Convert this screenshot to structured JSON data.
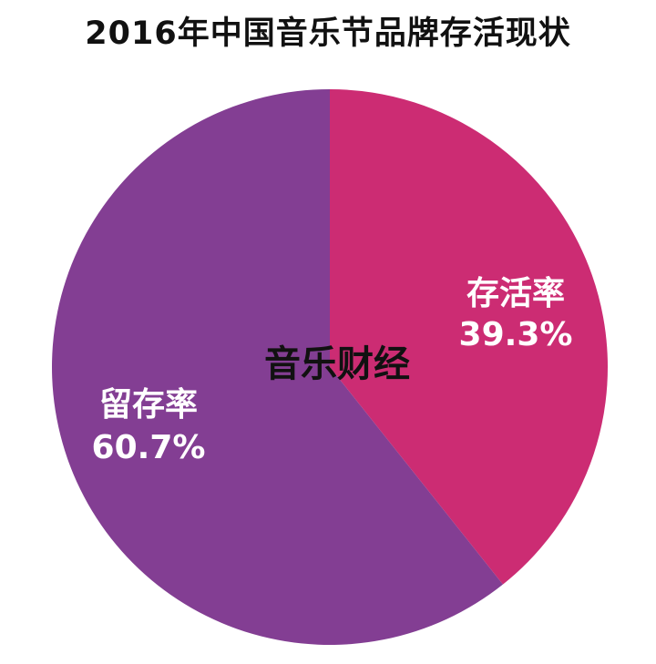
{
  "chart_data": {
    "type": "pie",
    "title": "2016年中国音乐节品牌存活现状",
    "slices": [
      {
        "label": "存活率",
        "value": 39.3,
        "value_label": "39.3%",
        "color": "#cc2c73"
      },
      {
        "label": "留存率",
        "value": 60.7,
        "value_label": "60.7%",
        "color": "#833e93"
      }
    ],
    "start_angle": "12 o'clock",
    "direction": "clockwise"
  },
  "watermark": "音乐财经"
}
